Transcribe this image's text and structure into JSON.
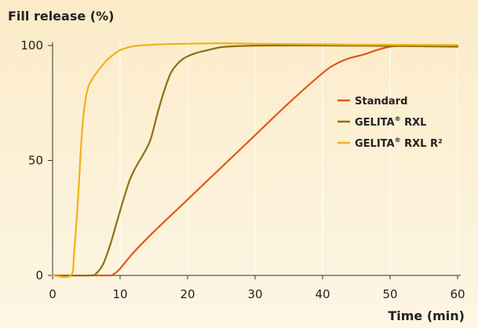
{
  "chart_data": {
    "type": "line",
    "ylabel": "Fill release (%)",
    "xlabel": "Time (min)",
    "xlim": [
      0,
      60
    ],
    "ylim": [
      0,
      100
    ],
    "x_ticks": [
      0,
      10,
      20,
      30,
      40,
      50,
      60
    ],
    "y_ticks": [
      0,
      50,
      100
    ],
    "grid": "vertical",
    "legend_position": "right-middle",
    "background_color": "#fdf0d2",
    "series": [
      {
        "name": "Standard",
        "color": "#e2581a",
        "x": [
          0,
          8,
          9,
          10,
          12,
          15,
          20,
          25,
          30,
          35,
          40,
          42,
          44,
          46,
          48,
          50,
          52,
          55,
          60
        ],
        "y": [
          0,
          0,
          0.5,
          3,
          10,
          19,
          33,
          47,
          61,
          75,
          88,
          92,
          94.5,
          96,
          98,
          99.5,
          100,
          100,
          99.5
        ]
      },
      {
        "name": "GELITA® RXL",
        "color": "#8e7012",
        "x": [
          0,
          5.5,
          6.5,
          7.5,
          8.5,
          9.5,
          10.5,
          11.5,
          12.5,
          13.5,
          14.5,
          15.5,
          16.5,
          17.5,
          18.5,
          19.5,
          21,
          23,
          25,
          28,
          32,
          40,
          50,
          60
        ],
        "y": [
          0,
          0,
          1,
          5,
          13,
          23,
          33,
          42,
          48,
          53,
          59,
          70,
          80,
          88,
          92,
          94.5,
          96.5,
          98,
          99.3,
          99.8,
          100,
          100,
          99.8,
          99.5
        ]
      },
      {
        "name": "GELITA® RXL R²",
        "color": "#f0b21a",
        "x": [
          0,
          2.7,
          3.2,
          3.8,
          4.3,
          4.8,
          5.3,
          6,
          7,
          8,
          9,
          10,
          11,
          12,
          14,
          17,
          20,
          25,
          30,
          40,
          50,
          60
        ],
        "y": [
          0,
          0,
          10,
          35,
          60,
          75,
          82,
          86,
          90,
          93.5,
          96,
          98,
          99,
          99.7,
          100.2,
          100.6,
          100.8,
          101,
          100.8,
          100.5,
          100.3,
          100.2
        ]
      }
    ]
  },
  "legend": {
    "items": [
      {
        "brand": "Standard",
        "sup": "",
        "rest": ""
      },
      {
        "brand": "GELITA",
        "sup": "®",
        "rest": " RXL"
      },
      {
        "brand": "GELITA",
        "sup": "®",
        "rest": " RXL R²"
      }
    ]
  }
}
